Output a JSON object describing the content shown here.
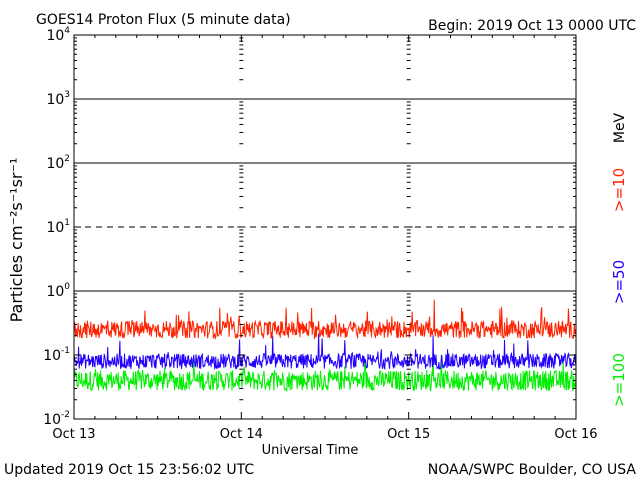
{
  "chart_data": {
    "type": "line",
    "title": "GOES14 Proton Flux (5 minute data)",
    "begin_label": "Begin: 2019 Oct 13 0000 UTC",
    "xlabel": "Universal Time",
    "ylabel": "Particles cm⁻²s⁻¹sr⁻¹",
    "y_scale": "log",
    "ylim": [
      0.01,
      10000
    ],
    "xlim": [
      0,
      3
    ],
    "x_tick_labels": [
      "Oct 13",
      "Oct 14",
      "Oct 15",
      "Oct 16"
    ],
    "y_tick_labels": [
      {
        "base": "10",
        "exp": "-2"
      },
      {
        "base": "10",
        "exp": "-1"
      },
      {
        "base": "10",
        "exp": "0"
      },
      {
        "base": "10",
        "exp": "1"
      },
      {
        "base": "10",
        "exp": "2"
      },
      {
        "base": "10",
        "exp": "3"
      },
      {
        "base": "10",
        "exp": "4"
      }
    ],
    "threshold_lines": [
      {
        "value": 10,
        "style": "dashed"
      },
      {
        "value": 1,
        "style": "solid"
      },
      {
        "value": 100,
        "style": "solid"
      },
      {
        "value": 1000,
        "style": "solid"
      }
    ],
    "series": [
      {
        "name": ">=10",
        "color": "#ff2200",
        "typical_value": 0.25
      },
      {
        "name": ">=50",
        "color": "#2200ff",
        "typical_value": 0.08
      },
      {
        "name": ">=100",
        "color": "#00ee00",
        "typical_value": 0.04
      }
    ],
    "unit_label": "MeV"
  },
  "footer": {
    "updated": "Updated 2019 Oct 15 23:56:02 UTC",
    "credit": "NOAA/SWPC Boulder, CO USA"
  }
}
